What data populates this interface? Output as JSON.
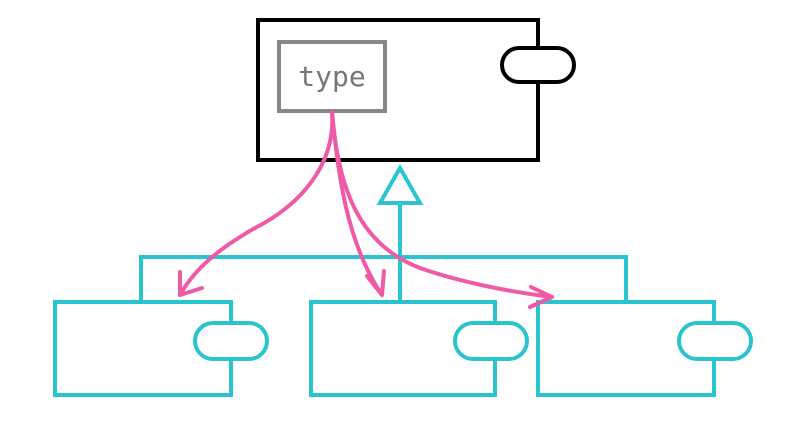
{
  "diagram": {
    "type_label": "type"
  },
  "colors": {
    "background": "#ffffff",
    "parent_stroke": "#000000",
    "type_box_stroke": "#888888",
    "type_text": "#777777",
    "child_stroke": "#29c4d0",
    "arrow_stroke": "#ee5aa6"
  },
  "icons": {
    "port": "port-icon",
    "inheritance_arrow": "inheritance-arrow-icon",
    "reference_arrow": "reference-arrow-icon"
  }
}
